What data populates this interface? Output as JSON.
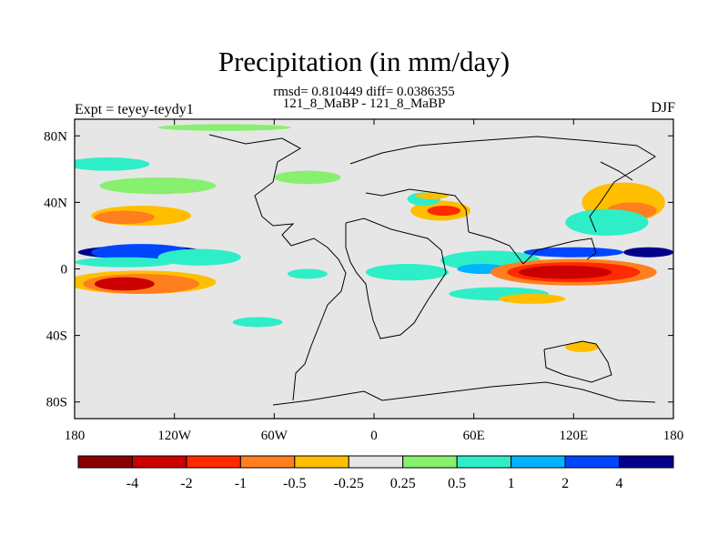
{
  "chart_data": {
    "type": "heatmap",
    "title": "Precipitation (in mm/day)",
    "stats_line": "rmsd= 0.810449 diff= 0.0386355",
    "comparison": "121_8_MaBP - 121_8_MaBP",
    "left_label": "Expt = teyey-teydy1",
    "right_label": "DJF",
    "xlim": [
      -180,
      180
    ],
    "ylim": [
      -90,
      90
    ],
    "x_ticks": [
      {
        "value": -180,
        "label": "180"
      },
      {
        "value": -120,
        "label": "120W"
      },
      {
        "value": -60,
        "label": "60W"
      },
      {
        "value": 0,
        "label": "0"
      },
      {
        "value": 60,
        "label": "60E"
      },
      {
        "value": 120,
        "label": "120E"
      },
      {
        "value": 180,
        "label": "180"
      }
    ],
    "y_ticks": [
      {
        "value": 80,
        "label": "80N"
      },
      {
        "value": 40,
        "label": "40N"
      },
      {
        "value": 0,
        "label": "0"
      },
      {
        "value": -40,
        "label": "40S"
      },
      {
        "value": -80,
        "label": "80S"
      }
    ],
    "colorbar": {
      "colors": [
        "#8b0000",
        "#cc0000",
        "#ff2a00",
        "#ff7f1e",
        "#ffbf00",
        "#e6e6e6",
        "#87f06e",
        "#2eeec8",
        "#00b4ff",
        "#0046ff",
        "#00008b"
      ],
      "tick_labels": [
        "-4",
        "-2",
        "-1",
        "-0.5",
        "-0.25",
        "0.25",
        "0.5",
        "1",
        "2",
        "4"
      ]
    },
    "anomaly_regions": [
      {
        "lon": -140,
        "lat": 10,
        "rx": 38,
        "ry": 4,
        "level": 10
      },
      {
        "lon": -140,
        "lat": 10,
        "rx": 30,
        "ry": 5,
        "level": 9
      },
      {
        "lon": -105,
        "lat": 7,
        "rx": 25,
        "ry": 5,
        "level": 7
      },
      {
        "lon": -150,
        "lat": 4,
        "rx": 30,
        "ry": 3,
        "level": 7
      },
      {
        "lon": -140,
        "lat": 32,
        "rx": 30,
        "ry": 6,
        "level": 4
      },
      {
        "lon": -150,
        "lat": 31,
        "rx": 18,
        "ry": 4,
        "level": 3
      },
      {
        "lon": -140,
        "lat": -8,
        "rx": 45,
        "ry": 7,
        "level": 4
      },
      {
        "lon": -140,
        "lat": -9,
        "rx": 35,
        "ry": 6,
        "level": 3
      },
      {
        "lon": -150,
        "lat": -9,
        "rx": 18,
        "ry": 4,
        "level": 1
      },
      {
        "lon": -130,
        "lat": 50,
        "rx": 35,
        "ry": 5,
        "level": 6
      },
      {
        "lon": -160,
        "lat": 63,
        "rx": 25,
        "ry": 4,
        "level": 7
      },
      {
        "lon": -90,
        "lat": 85,
        "rx": 40,
        "ry": 2,
        "level": 6
      },
      {
        "lon": 40,
        "lat": 35,
        "rx": 18,
        "ry": 6,
        "level": 4
      },
      {
        "lon": 42,
        "lat": 35,
        "rx": 10,
        "ry": 3,
        "level": 2
      },
      {
        "lon": 30,
        "lat": 42,
        "rx": 10,
        "ry": 4,
        "level": 7
      },
      {
        "lon": 70,
        "lat": 5,
        "rx": 30,
        "ry": 6,
        "level": 7
      },
      {
        "lon": 65,
        "lat": 0,
        "rx": 15,
        "ry": 3,
        "level": 8
      },
      {
        "lon": 20,
        "lat": -2,
        "rx": 25,
        "ry": 5,
        "level": 7
      },
      {
        "lon": -40,
        "lat": -3,
        "rx": 12,
        "ry": 3,
        "level": 7
      },
      {
        "lon": 120,
        "lat": -2,
        "rx": 50,
        "ry": 8,
        "level": 3
      },
      {
        "lon": 120,
        "lat": -2,
        "rx": 40,
        "ry": 6,
        "level": 2
      },
      {
        "lon": 115,
        "lat": -2,
        "rx": 28,
        "ry": 4,
        "level": 1
      },
      {
        "lon": 120,
        "lat": 10,
        "rx": 30,
        "ry": 3,
        "level": 9
      },
      {
        "lon": 165,
        "lat": 10,
        "rx": 15,
        "ry": 3,
        "level": 10
      },
      {
        "lon": 150,
        "lat": 40,
        "rx": 25,
        "ry": 12,
        "level": 4
      },
      {
        "lon": 155,
        "lat": 35,
        "rx": 15,
        "ry": 5,
        "level": 3
      },
      {
        "lon": 140,
        "lat": 28,
        "rx": 25,
        "ry": 8,
        "level": 7
      },
      {
        "lon": 75,
        "lat": -15,
        "rx": 30,
        "ry": 4,
        "level": 7
      },
      {
        "lon": 95,
        "lat": -18,
        "rx": 20,
        "ry": 3,
        "level": 4
      },
      {
        "lon": 125,
        "lat": -47,
        "rx": 10,
        "ry": 3,
        "level": 4
      },
      {
        "lon": -70,
        "lat": -32,
        "rx": 15,
        "ry": 3,
        "level": 7
      },
      {
        "lon": 35,
        "lat": 44,
        "rx": 10,
        "ry": 2,
        "level": 4
      },
      {
        "lon": -40,
        "lat": 55,
        "rx": 20,
        "ry": 4,
        "level": 6
      }
    ]
  }
}
